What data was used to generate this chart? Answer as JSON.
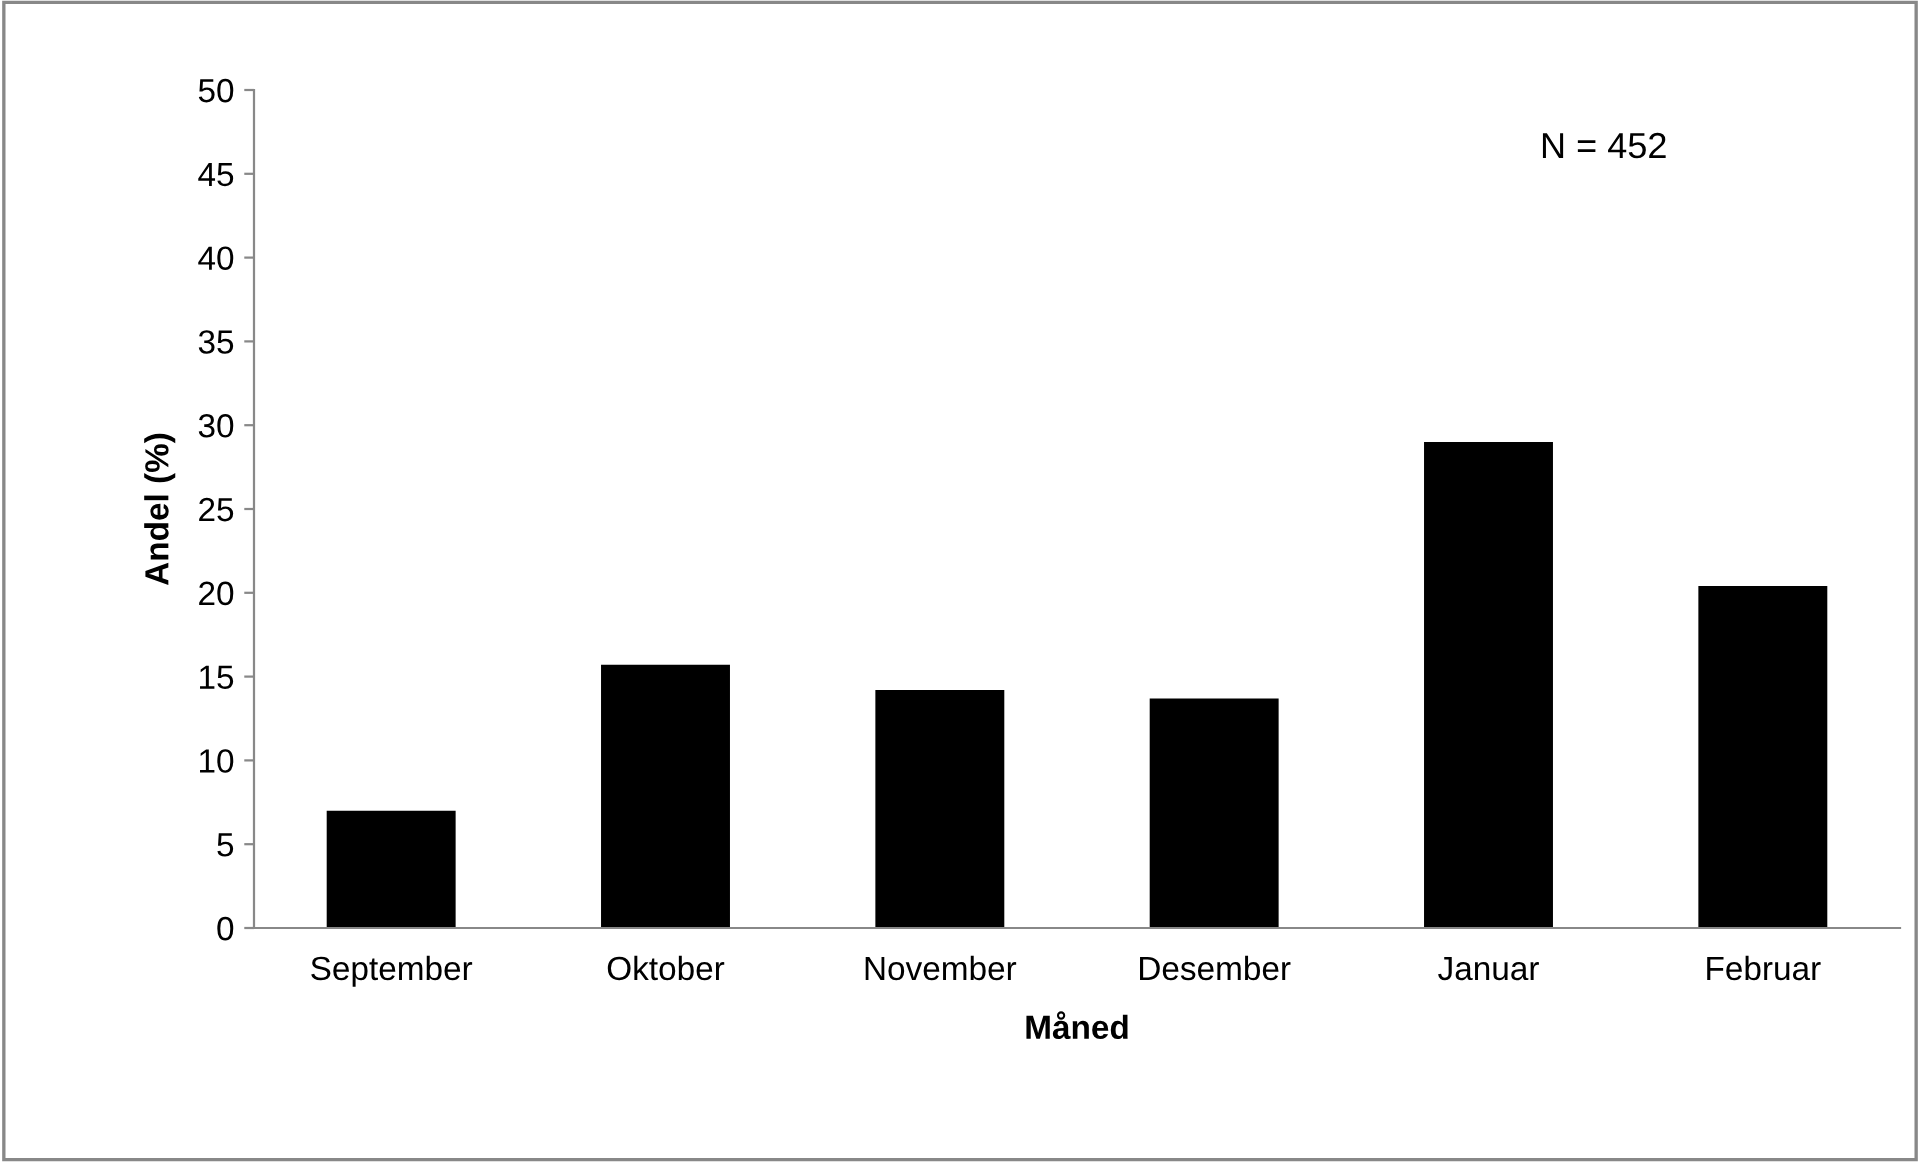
{
  "chart_data": {
    "type": "bar",
    "xlabel": "Måned",
    "ylabel": "Andel (%)",
    "categories": [
      "September",
      "Oktober",
      "November",
      "Desember",
      "Januar",
      "Februar"
    ],
    "values": [
      7.0,
      15.7,
      14.2,
      13.7,
      29.0,
      20.4
    ],
    "color": "#000000",
    "ylim": [
      0,
      50
    ],
    "yticks": [
      0,
      5,
      10,
      15,
      20,
      25,
      30,
      35,
      40,
      45,
      50
    ],
    "grid": false,
    "legend": false,
    "annotations": [
      "N = 452"
    ]
  }
}
